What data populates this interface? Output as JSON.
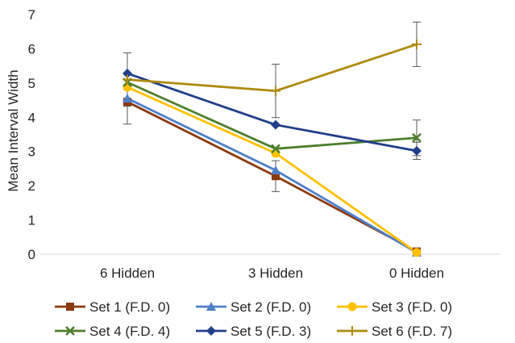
{
  "chart_data": {
    "type": "line",
    "title": "",
    "xlabel": "",
    "ylabel": "Mean Interval Width",
    "categories": [
      "6 Hidden",
      "3 Hidden",
      "0 Hidden"
    ],
    "ylim": [
      0,
      7
    ],
    "yticks": [
      "0",
      "1",
      "2",
      "3",
      "4",
      "5",
      "6",
      "7"
    ],
    "grid": false,
    "legend_position": "bottom",
    "series": [
      {
        "name": "Set 1 (F.D. 0)",
        "values": [
          4.45,
          2.28,
          0.08
        ],
        "color": "#8B3A0F",
        "marker": "square",
        "error": [
          0.65,
          0.45,
          0.0
        ]
      },
      {
        "name": "Set 2  (F.D. 0)",
        "values": [
          4.55,
          2.45,
          0.05
        ],
        "color": "#4F7FC8",
        "marker": "triangle",
        "error": [
          0.0,
          0.0,
          0.0
        ]
      },
      {
        "name": "Set 3 (F.D. 0)",
        "values": [
          4.88,
          2.95,
          0.05
        ],
        "color": "#FFC000",
        "marker": "circle",
        "error": [
          0.0,
          0.0,
          0.0
        ]
      },
      {
        "name": "Set 4 (F.D. 4)",
        "values": [
          5.02,
          3.08,
          3.4
        ],
        "color": "#4E7E2E",
        "marker": "x",
        "error": [
          0.0,
          0.0,
          0.52
        ]
      },
      {
        "name": "Set 5 (F.D. 3)",
        "values": [
          5.28,
          3.78,
          3.02
        ],
        "color": "#233F8A",
        "marker": "diamond",
        "error": [
          0.0,
          0.0,
          0.25
        ]
      },
      {
        "name": "Set 6 (F.D. 7)",
        "values": [
          5.1,
          4.77,
          6.13
        ],
        "color": "#AE8A0F",
        "marker": "plus",
        "error": [
          0.78,
          0.78,
          0.65
        ]
      }
    ]
  }
}
